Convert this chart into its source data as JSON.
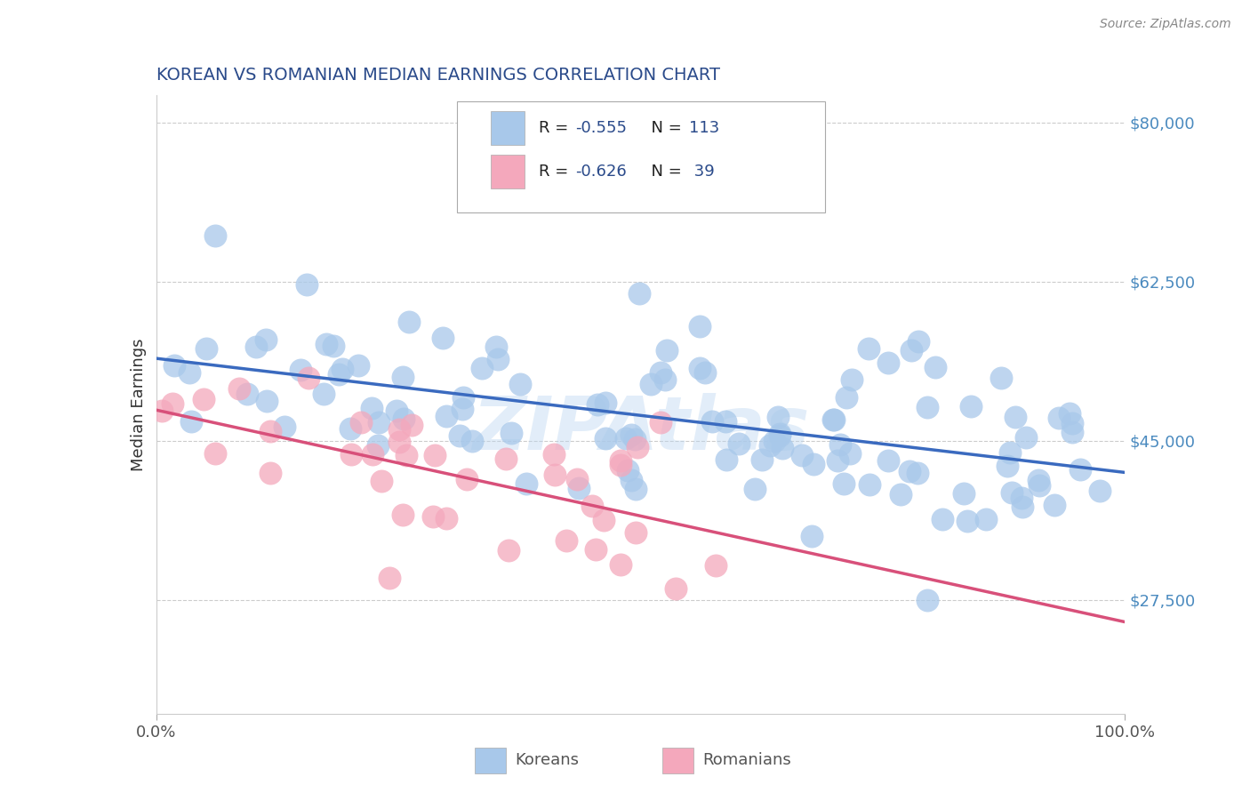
{
  "title": "KOREAN VS ROMANIAN MEDIAN EARNINGS CORRELATION CHART",
  "source_text": "Source: ZipAtlas.com",
  "ylabel": "Median Earnings",
  "watermark": "ZIPAtlas",
  "xlim": [
    0.0,
    1.0
  ],
  "ylim": [
    15000,
    83000
  ],
  "yticks": [
    27500,
    45000,
    62500,
    80000
  ],
  "ytick_labels": [
    "$27,500",
    "$45,000",
    "$62,500",
    "$80,000"
  ],
  "xtick_positions": [
    0.0,
    1.0
  ],
  "xtick_labels": [
    "0.0%",
    "100.0%"
  ],
  "korean_color": "#a8c8ea",
  "romanian_color": "#f4a8bc",
  "korean_line_color": "#3a6abf",
  "romanian_line_color": "#d8507a",
  "title_color": "#2a4a8a",
  "yaxis_color": "#4a8abf",
  "grid_color": "#cccccc",
  "background_color": "#ffffff",
  "legend_text_color": "#2a4a8a",
  "legend_r_color_korean": "#d04040",
  "korean_R": -0.555,
  "korean_N": 113,
  "romanian_R": -0.626,
  "romanian_N": 39,
  "bottom_legend_korean": "Koreans",
  "bottom_legend_romanian": "Romanians"
}
